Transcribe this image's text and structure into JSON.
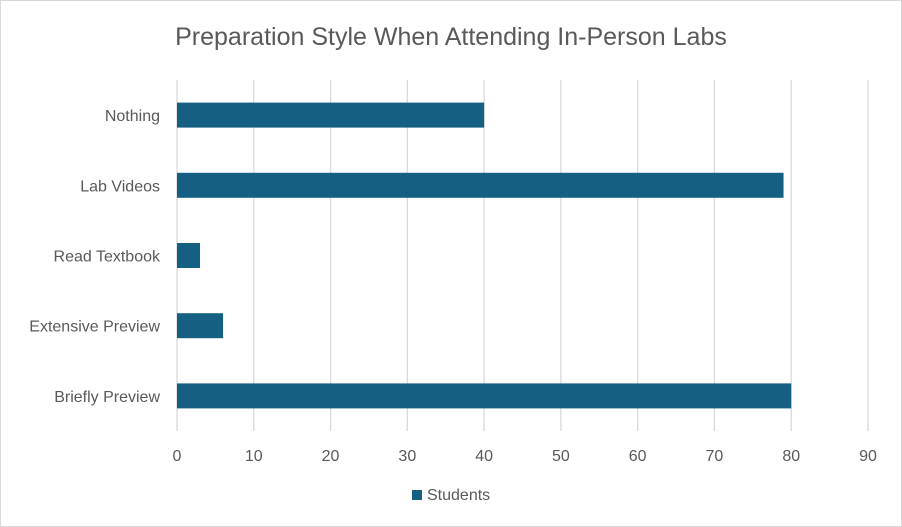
{
  "chart_data": {
    "type": "bar",
    "orientation": "horizontal",
    "title": "Preparation Style When Attending In-Person Labs",
    "categories": [
      "Nothing",
      "Lab Videos",
      "Read Textbook",
      "Extensive Preview",
      "Briefly Preview"
    ],
    "series": [
      {
        "name": "Students",
        "values": [
          40,
          79,
          3,
          6,
          80
        ],
        "color": "#156082"
      }
    ],
    "xlim": [
      0,
      90
    ],
    "xticks": [
      0,
      10,
      20,
      30,
      40,
      50,
      60,
      70,
      80,
      90
    ],
    "grid": true,
    "legend": "bottom"
  }
}
